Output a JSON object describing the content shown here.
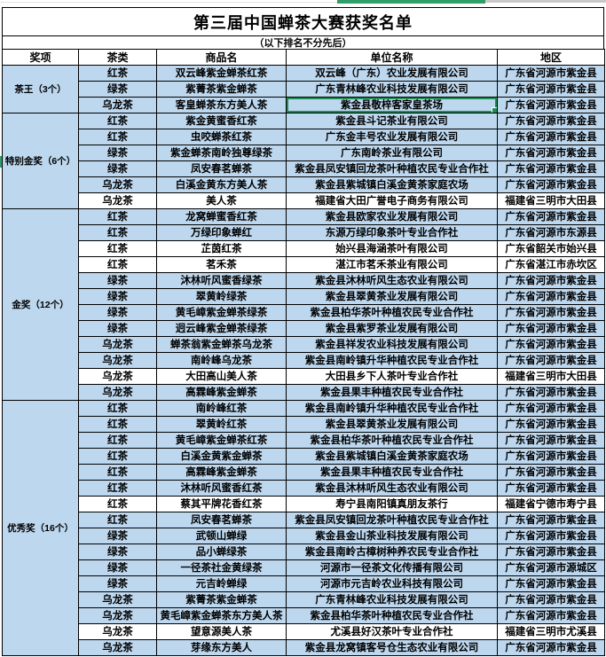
{
  "page": {
    "title": "第三届中国蝉茶大赛获奖名单",
    "subtitle": "（以下排名不分先后）"
  },
  "colors": {
    "row_blue": "#BDD7EE",
    "row_white": "#FFFFFF",
    "grid_border": "#000000",
    "selection_green": "#1E8E53",
    "top_bar_green": "#2F9E69",
    "top_bar_gray": "#C9C9C9"
  },
  "table": {
    "headers": [
      "奖项",
      "茶类",
      "商品名",
      "单位名称",
      "地区"
    ],
    "selection": {
      "group": 0,
      "row": 2,
      "col": "unit"
    },
    "groups": [
      {
        "award": "茶王（3个）",
        "rows": [
          {
            "tea": "红茶",
            "product": "双云峰紫金蝉茶红茶",
            "unit": "双云峰（广东）农业发展有限公司",
            "region": "广东省河源市紫金县"
          },
          {
            "tea": "绿茶",
            "product": "紫菁茶紫金蝉茶",
            "unit": "广东青林峰农业科技发展有限公司",
            "region": "广东省河源市紫金县"
          },
          {
            "tea": "乌龙茶",
            "product": "客皇蝉茶东方美人茶",
            "unit": "紫金县敬梓客家皇茶场",
            "region": "广东省河源市紫金县"
          }
        ]
      },
      {
        "award": "特别金奖（6个）",
        "rows": [
          {
            "tea": "红茶",
            "product": "紫金黄蜜香红茶",
            "unit": "紫金县斗记茶业有限公司",
            "region": "广东省河源市紫金县"
          },
          {
            "tea": "红茶",
            "product": "虫咬蝉茶红茶",
            "unit": "广东金丰号农业发展有限公司",
            "region": "广东省河源市紫金县"
          },
          {
            "tea": "绿茶",
            "product": "紫金蝉茶南岭独尊绿茶",
            "unit": "广东南岭茶业有限公司",
            "region": "广东省河源市紫金县"
          },
          {
            "tea": "绿茶",
            "product": "凤安春茗蝉茶",
            "unit": "紫金县凤安镇回龙茶叶种植农民专业合作社",
            "region": "广东省河源市紫金县"
          },
          {
            "tea": "乌龙茶",
            "product": "白溪金黄东方美人茶",
            "unit": "紫金县紫城镇白溪金黄茶家庭农场",
            "region": "广东省河源市紫金县"
          },
          {
            "tea": "乌龙茶",
            "product": "美人茶",
            "unit": "福建省大田广誉电子商务有限公司",
            "region": "福建省三明市大田县",
            "plain": true
          }
        ]
      },
      {
        "award": "金奖（12个）",
        "rows": [
          {
            "tea": "红茶",
            "product": "龙窝蝉蜜香红茶",
            "unit": "紫金县欧家农业发展有限公司",
            "region": "广东省河源市紫金县"
          },
          {
            "tea": "红茶",
            "product": "万绿印象蝉红",
            "unit": "东源万绿印象茶叶专业合作社",
            "region": "广东省河源市东源县"
          },
          {
            "tea": "红茶",
            "product": "芷茵红茶",
            "unit": "始兴县海涵茶叶有限公司",
            "region": "广东省韶关市始兴县",
            "plain": true
          },
          {
            "tea": "红茶",
            "product": "茗禾茶",
            "unit": "湛江市茗禾茶业有限公司",
            "region": "广东省湛江市赤坎区",
            "plain": true
          },
          {
            "tea": "绿茶",
            "product": "沐林听风蜜香绿茶",
            "unit": "紫金县沐林听风生态农业有限公司",
            "region": "广东省河源市紫金县"
          },
          {
            "tea": "绿茶",
            "product": "翠黄岭绿茶",
            "unit": "紫金县翠黄茶业发展有限公司",
            "region": "广东省河源市紫金县"
          },
          {
            "tea": "绿茶",
            "product": "黄毛嶂紫金蝉茶绿茶",
            "unit": "紫金县柏华茶叶种植农民专业合作社",
            "region": "广东省河源市紫金县"
          },
          {
            "tea": "绿茶",
            "product": "迥云峰紫金蝉茶绿茶",
            "unit": "紫金县紫罗茶业发展有限公司",
            "region": "广东省河源市紫金县"
          },
          {
            "tea": "乌龙茶",
            "product": "蝉茶翁紫金蝉茶乌龙茶",
            "unit": "紫金县祥发农业科技发展有限公司",
            "region": "广东省河源市紫金县"
          },
          {
            "tea": "乌龙茶",
            "product": "南岭峰乌龙茶",
            "unit": "紫金县南岭镇升华种植农民专业合作社",
            "region": "广东省河源市紫金县"
          },
          {
            "tea": "乌龙茶",
            "product": "大田高山美人茶",
            "unit": "大田县乡下人茶叶专业合作社",
            "region": "福建省三明市大田县",
            "plain": true
          },
          {
            "tea": "乌龙茶",
            "product": "高霖峰紫金蝉茶",
            "unit": "紫金县果丰种植农民专业合作社",
            "region": "广东省河源市紫金县"
          }
        ]
      },
      {
        "award": "优秀奖（16个）",
        "rows": [
          {
            "tea": "红茶",
            "product": "南岭峰红茶",
            "unit": "紫金县南岭镇升华种植农民专业合作社",
            "region": "广东省河源市紫金县"
          },
          {
            "tea": "红茶",
            "product": "翠黄岭红茶",
            "unit": "紫金县翠黄茶业发展有限公司",
            "region": "广东省河源市紫金县"
          },
          {
            "tea": "红茶",
            "product": "黄毛嶂紫金蝉茶红茶",
            "unit": "紫金县柏华茶叶种植农民专业合作社",
            "region": "广东省河源市紫金县"
          },
          {
            "tea": "红茶",
            "product": "白溪金黄紫金蝉茶",
            "unit": "紫金县紫城镇白溪金黄茶家庭农场",
            "region": "广东省河源市紫金县"
          },
          {
            "tea": "红茶",
            "product": "高霖峰紫金蝉茶",
            "unit": "紫金县果丰种植农民专业合作社",
            "region": "广东省河源市紫金县"
          },
          {
            "tea": "红茶",
            "product": "沐林听风蜜香红茶",
            "unit": "紫金县沐林听风生态农业有限公司",
            "region": "广东省河源市紫金县"
          },
          {
            "tea": "红茶",
            "product": "蔡其平牌花香红茶",
            "unit": "寿宁县南阳镇真朋友茶行",
            "region": "福建省宁德市寿宁县",
            "plain": true
          },
          {
            "tea": "红茶",
            "product": "凤安春茗蝉茶",
            "unit": "紫金县凤安镇回龙茶叶种植农民专业合作社",
            "region": "广东省河源市紫金县"
          },
          {
            "tea": "绿茶",
            "product": "武顿山蝉绿",
            "unit": "紫金县金山茶业科技发展有限公司",
            "region": "广东省河源市紫金县"
          },
          {
            "tea": "绿茶",
            "product": "品小蝉绿茶",
            "unit": "紫金县南岭古樟树种养农民专业合作社",
            "region": "广东省河源市紫金县"
          },
          {
            "tea": "绿茶",
            "product": "一径茶社金黄绿茶",
            "unit": "河源市一径茶文化传播有限公司",
            "region": "广东省河源市源城区"
          },
          {
            "tea": "绿茶",
            "product": "元吉岭蝉绿",
            "unit": "河源市元吉岭农业科技有限公司",
            "region": "广东省河源市紫金县"
          },
          {
            "tea": "乌龙茶",
            "product": "紫菁茶紫金蝉茶",
            "unit": "广东青林峰农业科技发展有限公司",
            "region": "广东省河源市紫金县"
          },
          {
            "tea": "乌龙茶",
            "product": "黄毛嶂紫金蝉茶东方美人茶",
            "unit": "紫金县柏华茶叶种植农民专业合作社",
            "region": "广东省河源市紫金县"
          },
          {
            "tea": "乌龙茶",
            "product": "望意源美人茶",
            "unit": "尤溪县好汉茶叶专业合作社",
            "region": "福建省三明市尤溪县",
            "plain": true
          },
          {
            "tea": "乌龙茶",
            "product": "芽缘东方美人",
            "unit": "紫金县龙窝镇客号仓生态农业有限公司",
            "region": "广东省河源市紫金县"
          }
        ]
      }
    ]
  }
}
